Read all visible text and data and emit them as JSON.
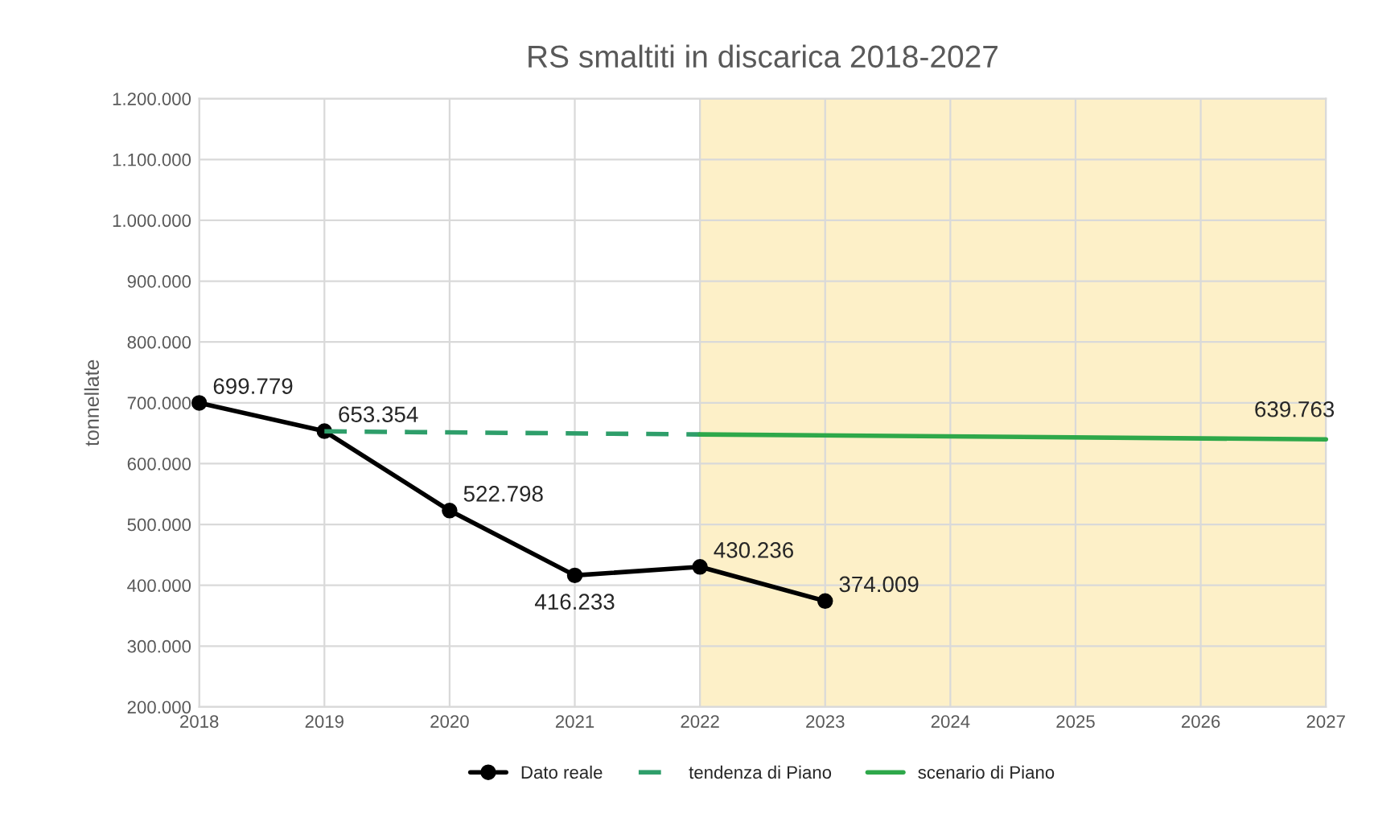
{
  "chart_data": {
    "type": "line",
    "title": "RS smaltiti in discarica 2018-2027",
    "ylabel": "tonnellate",
    "xlim": [
      2018,
      2027
    ],
    "xticks": [
      2018,
      2019,
      2020,
      2021,
      2022,
      2023,
      2024,
      2025,
      2026,
      2027
    ],
    "ylim": [
      200000,
      1200000
    ],
    "yticks": [
      {
        "value": 200000,
        "label": "200.000"
      },
      {
        "value": 300000,
        "label": "300.000"
      },
      {
        "value": 400000,
        "label": "400.000"
      },
      {
        "value": 500000,
        "label": "500.000"
      },
      {
        "value": 600000,
        "label": "600.000"
      },
      {
        "value": 700000,
        "label": "700.000"
      },
      {
        "value": 800000,
        "label": "800.000"
      },
      {
        "value": 900000,
        "label": "900.000"
      },
      {
        "value": 1000000,
        "label": "1.000.000"
      },
      {
        "value": 1100000,
        "label": "1.100.000"
      },
      {
        "value": 1200000,
        "label": "1.200.000"
      }
    ],
    "grid": true,
    "legend": "bottom",
    "bands": [
      {
        "axis": "x",
        "from": 2022,
        "to": 2027,
        "color": "#fdf0c8"
      }
    ],
    "series": [
      {
        "name": "Dato reale",
        "color": "#000000",
        "marker": "circle",
        "line_style": "solid",
        "x": [
          2018,
          2019,
          2020,
          2021,
          2022,
          2023
        ],
        "values": [
          699779,
          653354,
          522798,
          416233,
          430236,
          374009
        ],
        "value_labels": [
          "699.779",
          "653.354",
          "522.798",
          "416.233",
          "430.236",
          "374.009"
        ]
      },
      {
        "name": "tendenza di Piano",
        "color": "#2e9e6a",
        "marker": "none",
        "line_style": "dashed",
        "x": [
          2019,
          2022
        ],
        "values": [
          653000,
          648000
        ]
      },
      {
        "name": "scenario di Piano",
        "color": "#2ea84a",
        "marker": "none",
        "line_style": "solid",
        "x": [
          2022,
          2027
        ],
        "values": [
          648000,
          639763
        ],
        "value_labels": [
          null,
          "639.763"
        ]
      }
    ]
  }
}
